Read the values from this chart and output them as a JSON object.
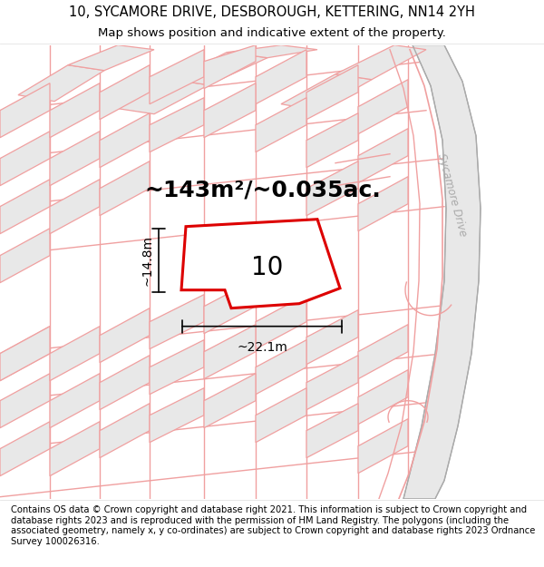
{
  "title_line1": "10, SYCAMORE DRIVE, DESBOROUGH, KETTERING, NN14 2YH",
  "title_line2": "Map shows position and indicative extent of the property.",
  "footer_text": "Contains OS data © Crown copyright and database right 2021. This information is subject to Crown copyright and database rights 2023 and is reproduced with the permission of HM Land Registry. The polygons (including the associated geometry, namely x, y co-ordinates) are subject to Crown copyright and database rights 2023 Ordnance Survey 100026316.",
  "area_label": "~143m²/~0.035ac.",
  "house_number": "10",
  "width_label": "~22.1m",
  "height_label": "~14.8m",
  "bg_color": "#ffffff",
  "map_bg": "#ffffff",
  "road_color": "#f0aaaa",
  "road_fill": "#f5e8e8",
  "highlight_color": "#dd0000",
  "building_fill": "#e8e8e8",
  "building_edge": "#f0aaaa",
  "road_label": "Sycamore Drive",
  "road_label_color": "#aaaaaa",
  "fig_width": 6.0,
  "fig_height": 6.25,
  "title_fontsize": 10.5,
  "subtitle_fontsize": 9.5,
  "footer_fontsize": 7.2,
  "area_fontsize": 18,
  "house_fontsize": 20,
  "dim_fontsize": 10
}
